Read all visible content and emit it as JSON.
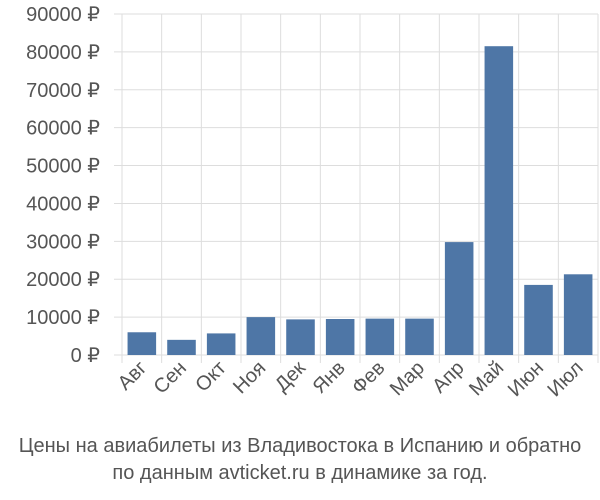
{
  "chart_data": {
    "type": "bar",
    "categories": [
      "Авг",
      "Сен",
      "Окт",
      "Ноя",
      "Дек",
      "Янв",
      "Фев",
      "Мар",
      "Апр",
      "Май",
      "Июн",
      "Июл"
    ],
    "values": [
      6000,
      4000,
      5700,
      10000,
      9400,
      9500,
      9600,
      9600,
      29800,
      81500,
      18500,
      21300
    ],
    "ylim": [
      0,
      90000
    ],
    "yticks": [
      0,
      10000,
      20000,
      30000,
      40000,
      50000,
      60000,
      70000,
      80000,
      90000
    ],
    "currency": "₽",
    "bar_color": "#4e76a6",
    "grid": true,
    "caption_line1": "Цены на авиабилеты из Владивостока в Испанию и обратно",
    "caption_line2": "по данным avticket.ru в динамике за год."
  }
}
